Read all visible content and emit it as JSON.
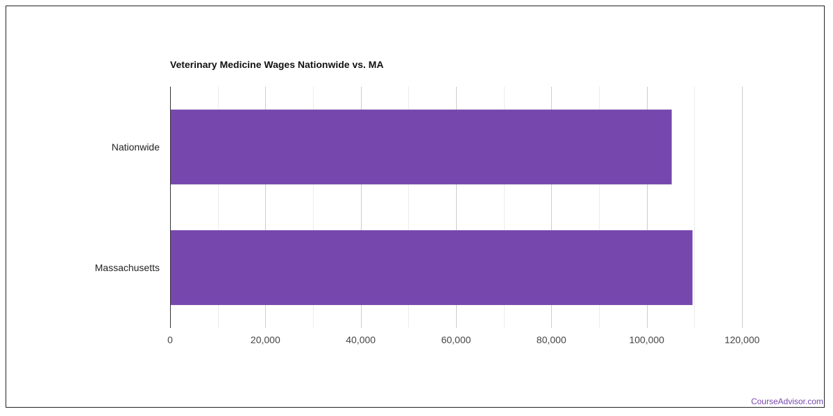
{
  "chart_data": {
    "type": "bar",
    "orientation": "horizontal",
    "title": "Veterinary Medicine Wages Nationwide vs. MA",
    "categories": [
      "Nationwide",
      "Massachusetts"
    ],
    "values": [
      105240,
      109600
    ],
    "xlim": [
      0,
      120000
    ],
    "xticks": [
      0,
      20000,
      40000,
      60000,
      80000,
      100000,
      120000
    ],
    "xtick_labels": [
      "0",
      "20,000",
      "40,000",
      "60,000",
      "80,000",
      "100,000",
      "120,000"
    ],
    "xlabel": "",
    "ylabel": "",
    "grid": true,
    "bar_color": "#7647ad"
  },
  "watermark": "CourseAdvisor.com"
}
